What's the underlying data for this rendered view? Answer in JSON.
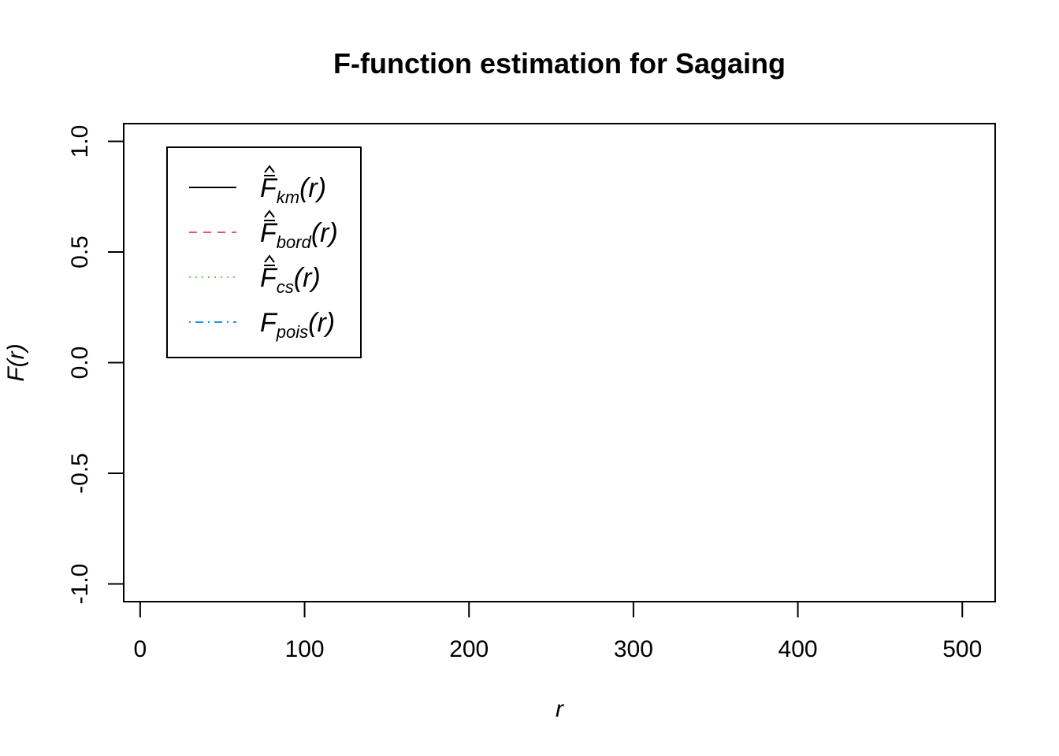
{
  "chart_data": {
    "type": "line",
    "title": "F-function estimation for Sagaing",
    "xlabel": "r",
    "ylabel": "F(r)",
    "xlim": [
      -10,
      520
    ],
    "ylim": [
      -1.08,
      1.08
    ],
    "x_ticks": [
      0,
      100,
      200,
      300,
      400,
      500
    ],
    "x_tick_labels": [
      "0",
      "100",
      "200",
      "300",
      "400",
      "500"
    ],
    "y_ticks": [
      -1.0,
      -0.5,
      0.0,
      0.5,
      1.0
    ],
    "y_tick_labels": [
      "-1.0",
      "-0.5",
      "0.0",
      "0.5",
      "1.0"
    ],
    "grid": false,
    "legend_position": "top-left",
    "series": [
      {
        "symbol": "F",
        "hat": true,
        "subscript": "km",
        "arg": "(r)",
        "color": "#000000",
        "dash": "solid",
        "values": []
      },
      {
        "symbol": "F",
        "hat": true,
        "subscript": "bord",
        "arg": "(r)",
        "color": "#DF536B",
        "dash": "dashed",
        "values": []
      },
      {
        "symbol": "F",
        "hat": true,
        "subscript": "cs",
        "arg": "(r)",
        "color": "#61D04F",
        "dash": "dotted",
        "values": []
      },
      {
        "symbol": "F",
        "hat": false,
        "subscript": "pois",
        "arg": "(r)",
        "color": "#2297E6",
        "dash": "dotdash",
        "values": []
      }
    ]
  }
}
